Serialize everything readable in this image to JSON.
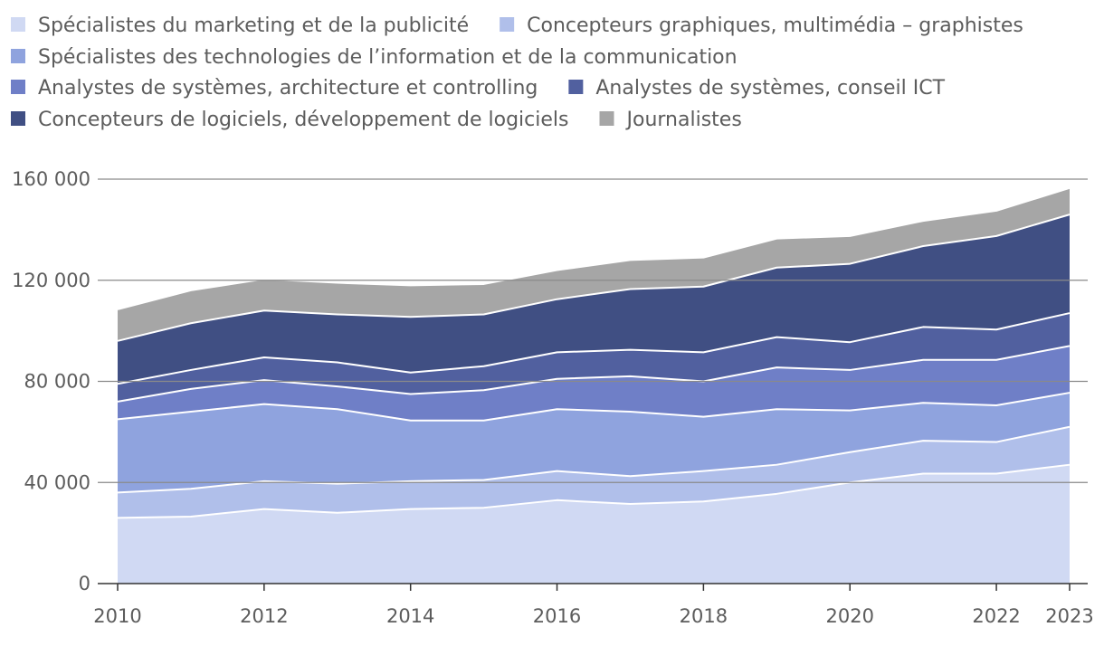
{
  "chart_data": {
    "type": "area",
    "stacked": true,
    "x": [
      2010,
      2011,
      2012,
      2013,
      2014,
      2015,
      2016,
      2017,
      2018,
      2019,
      2020,
      2021,
      2022,
      2023
    ],
    "ylim": [
      0,
      160000
    ],
    "y_ticks": [
      0,
      40000,
      80000,
      120000,
      160000
    ],
    "y_tick_labels": [
      "0",
      "40 000",
      "80 000",
      "120 000",
      "160 000"
    ],
    "x_ticks": [
      2010,
      2012,
      2014,
      2016,
      2018,
      2020,
      2022,
      2023
    ],
    "x_tick_labels": [
      "2010",
      "2012",
      "2014",
      "2016",
      "2018",
      "2020",
      "2022",
      "2023"
    ],
    "grid": true,
    "legend_position": "top",
    "series": [
      {
        "name": "Spécialistes du marketing et de la publicité",
        "color": "#d0d9f3",
        "values": [
          26000,
          26500,
          29500,
          28000,
          29500,
          30000,
          33000,
          31500,
          32500,
          35500,
          40000,
          43500,
          43500,
          47000
        ]
      },
      {
        "name": "Concepteurs graphiques, multimédia – graphistes",
        "color": "#b0bfea",
        "values": [
          10000,
          11000,
          11000,
          11500,
          11000,
          11000,
          11500,
          11000,
          12000,
          11500,
          12000,
          13000,
          12500,
          15000
        ]
      },
      {
        "name": "Spécialistes des technologies de l’information et de la communication",
        "color": "#8fa3de",
        "values": [
          29000,
          30500,
          30500,
          29500,
          24000,
          23500,
          24500,
          25500,
          21500,
          22000,
          16500,
          15000,
          14500,
          13500
        ]
      },
      {
        "name": "Analystes de systèmes, architecture et controlling",
        "color": "#6f7fc7",
        "values": [
          7000,
          9000,
          9500,
          9000,
          10500,
          12000,
          12000,
          14000,
          14000,
          16500,
          16000,
          17000,
          18000,
          18500
        ]
      },
      {
        "name": "Analystes de systèmes, conseil ICT",
        "color": "#51609f",
        "values": [
          7000,
          7500,
          9000,
          9500,
          8500,
          9500,
          10500,
          10500,
          11500,
          12000,
          11000,
          13000,
          12000,
          13000
        ]
      },
      {
        "name": "Concepteurs de logiciels, développement de logiciels",
        "color": "#404f83",
        "values": [
          17000,
          18500,
          18500,
          19000,
          22000,
          20500,
          21000,
          24000,
          26000,
          27500,
          31000,
          32000,
          37000,
          39000
        ]
      },
      {
        "name": "Journalistes",
        "color": "#a6a6a6",
        "values": [
          12500,
          13000,
          12500,
          12500,
          12500,
          12000,
          11500,
          11500,
          11500,
          11500,
          11000,
          10000,
          10000,
          10500
        ]
      }
    ]
  }
}
